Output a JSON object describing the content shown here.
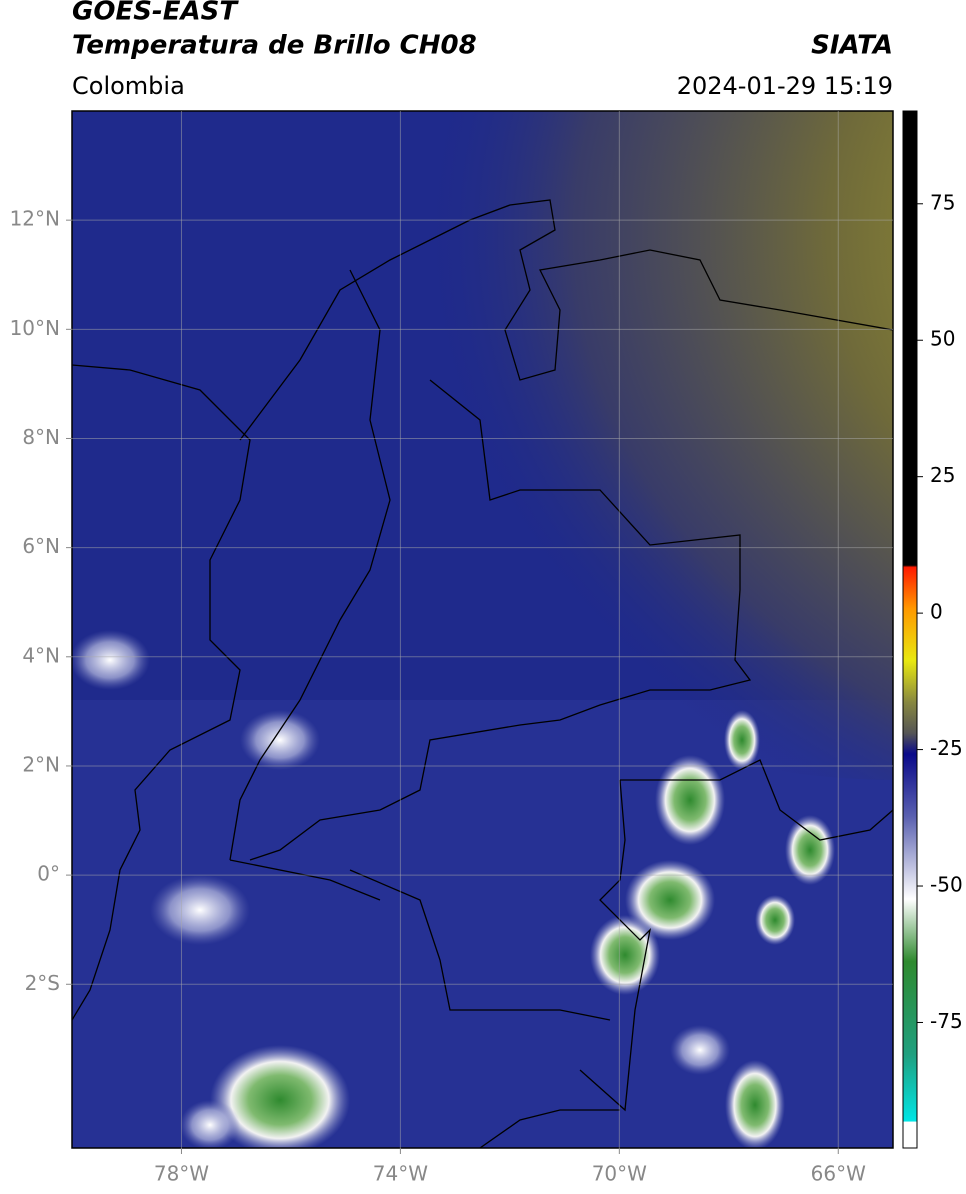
{
  "header": {
    "title": "GOES-EAST",
    "subtitle": "Temperatura de Brillo CH08",
    "source": "SIATA",
    "region": "Colombia",
    "datetime": "2024-01-29 15:19"
  },
  "map": {
    "xlim": [
      -80,
      -65
    ],
    "ylim": [
      -5,
      14
    ],
    "xticks": [
      {
        "value": -78,
        "label": "78°W"
      },
      {
        "value": -74,
        "label": "74°W"
      },
      {
        "value": -70,
        "label": "70°W"
      },
      {
        "value": -66,
        "label": "66°W"
      }
    ],
    "yticks": [
      {
        "value": 12,
        "label": "12°N"
      },
      {
        "value": 10,
        "label": "10°N"
      },
      {
        "value": 8,
        "label": "8°N"
      },
      {
        "value": 6,
        "label": "6°N"
      },
      {
        "value": 4,
        "label": "4°N"
      },
      {
        "value": 2,
        "label": "2°N"
      },
      {
        "value": 0,
        "label": "0°"
      },
      {
        "value": -2,
        "label": "2°S"
      }
    ],
    "grid": true
  },
  "colorbar": {
    "lim": [
      -98,
      92
    ],
    "ticks": [
      75,
      50,
      25,
      0,
      -25,
      -50,
      -75
    ]
  }
}
